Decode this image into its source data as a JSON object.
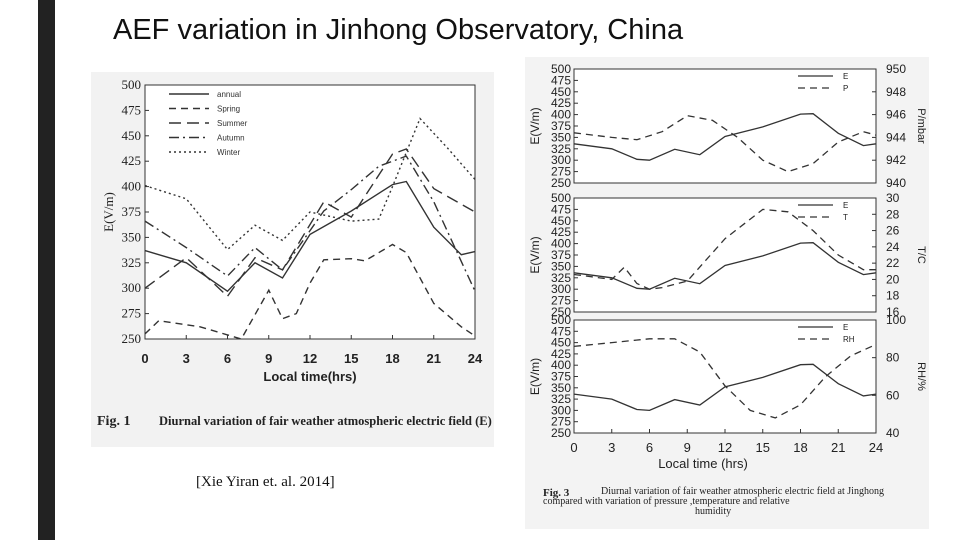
{
  "slide": {
    "title": "AEF variation in Jinhong Observatory, China",
    "citation": "[Xie Yiran et. al. 2014]"
  },
  "chart_data": [
    {
      "id": "fig1",
      "type": "line",
      "title": "",
      "caption_label": "Fig. 1",
      "caption_text": "Diurnal variation of fair weather atmospheric electric field (E)",
      "xlabel": "Local time(hrs)",
      "ylabel": "E(V/m)",
      "x_ticks": [
        "0",
        "3",
        "6",
        "9",
        "12",
        "15",
        "18",
        "21",
        "24"
      ],
      "y_ticks": [
        "250",
        "275",
        "300",
        "325",
        "350",
        "375",
        "400",
        "425",
        "450",
        "475",
        "500"
      ],
      "xlim": [
        0,
        24
      ],
      "ylim": [
        250,
        500
      ],
      "legend_position": "top-left",
      "series": [
        {
          "name": "annual",
          "dash": "solid",
          "x": [
            0,
            3,
            6,
            8,
            10,
            12,
            15,
            18,
            19,
            21,
            23,
            24
          ],
          "y": [
            337,
            325,
            297,
            325,
            310,
            353,
            376,
            402,
            405,
            360,
            333,
            336
          ]
        },
        {
          "name": "Spring",
          "dash": "dash",
          "x": [
            0,
            1,
            4,
            6,
            7,
            9,
            10,
            11,
            12,
            13,
            15,
            16,
            18,
            19,
            21,
            23,
            24
          ],
          "y": [
            255,
            268,
            262,
            254,
            250,
            298,
            270,
            275,
            305,
            328,
            329,
            327,
            343,
            335,
            285,
            262,
            253
          ]
        },
        {
          "name": "Summer",
          "dash": "longdash",
          "x": [
            0,
            3,
            6,
            8,
            10,
            13,
            15,
            18,
            19,
            21,
            24
          ],
          "y": [
            300,
            330,
            292,
            330,
            318,
            385,
            370,
            432,
            437,
            398,
            375
          ]
        },
        {
          "name": "Autumn",
          "dash": "dashdot",
          "x": [
            0,
            3,
            6,
            8,
            10,
            13,
            15,
            17,
            19,
            21,
            24
          ],
          "y": [
            366,
            340,
            312,
            340,
            318,
            376,
            397,
            420,
            430,
            385,
            297
          ]
        },
        {
          "name": "Winter",
          "dash": "dot",
          "x": [
            0,
            3,
            6,
            8,
            10,
            12,
            15,
            17,
            18,
            20,
            22,
            24
          ],
          "y": [
            401,
            388,
            338,
            362,
            347,
            375,
            366,
            368,
            400,
            467,
            438,
            407
          ]
        }
      ]
    },
    {
      "id": "fig3",
      "type": "line",
      "caption_label": "Fig. 3",
      "caption_text": "Diurnal variation of fair weather atmospheric electric field at Jinghong compared with  variation of pressure ,temperature and relative humidity",
      "xlabel": "Local time (hrs)",
      "x_ticks": [
        "0",
        "3",
        "6",
        "9",
        "12",
        "15",
        "18",
        "21",
        "24"
      ],
      "xlim": [
        0,
        24
      ],
      "panels": [
        {
          "ylabel_left": "E(V/m)",
          "ylabel_right": "P/mbar",
          "ylim_left": [
            250,
            500
          ],
          "ylim_right": [
            940,
            950
          ],
          "left_ticks": [
            "500",
            "475",
            "450",
            "425",
            "400",
            "375",
            "350",
            "325",
            "300",
            "275",
            "250"
          ],
          "right_ticks": [
            "950",
            "948",
            "946",
            "944",
            "942",
            "940"
          ],
          "legend_position": "top-right",
          "series": [
            {
              "name": "E",
              "axis": "left",
              "dash": "solid",
              "x": [
                0,
                3,
                5,
                6,
                8,
                10,
                12,
                15,
                18,
                19,
                21,
                23,
                24
              ],
              "y": [
                336,
                325,
                302,
                300,
                324,
                312,
                352,
                373,
                401,
                402,
                359,
                332,
                336
              ]
            },
            {
              "name": "P",
              "axis": "right",
              "dash": "dash",
              "x": [
                0,
                3,
                5,
                7,
                9,
                11,
                13,
                15,
                17,
                19,
                21,
                23,
                24
              ],
              "y": [
                944.4,
                944.0,
                943.8,
                944.5,
                945.9,
                945.5,
                944.0,
                942.0,
                941.0,
                941.7,
                943.6,
                944.5,
                944.2
              ]
            }
          ]
        },
        {
          "ylabel_left": "E(V/m)",
          "ylabel_right": "T/C",
          "ylim_left": [
            250,
            500
          ],
          "ylim_right": [
            16,
            30
          ],
          "left_ticks": [
            "500",
            "475",
            "450",
            "425",
            "400",
            "375",
            "350",
            "325",
            "300",
            "275",
            "250"
          ],
          "right_ticks": [
            "30",
            "28",
            "26",
            "24",
            "22",
            "20",
            "18",
            "16"
          ],
          "legend_position": "top-right",
          "series": [
            {
              "name": "E",
              "axis": "left",
              "dash": "solid",
              "x": [
                0,
                3,
                5,
                6,
                8,
                10,
                12,
                15,
                18,
                19,
                21,
                23,
                24
              ],
              "y": [
                336,
                325,
                302,
                300,
                324,
                312,
                352,
                373,
                401,
                402,
                359,
                332,
                336
              ]
            },
            {
              "name": "T",
              "axis": "right",
              "dash": "dash",
              "x": [
                0,
                3,
                4,
                5,
                6,
                7,
                9,
                12,
                15,
                17,
                19,
                21,
                23,
                24
              ],
              "y": [
                20.6,
                20.0,
                21.5,
                19.5,
                18.8,
                19.0,
                19.8,
                25.0,
                28.6,
                28.3,
                26.0,
                23.0,
                21.2,
                21.2
              ]
            }
          ]
        },
        {
          "ylabel_left": "E(V/m)",
          "ylabel_right": "RH/%",
          "ylim_left": [
            250,
            500
          ],
          "ylim_right": [
            40,
            100
          ],
          "left_ticks": [
            "500",
            "475",
            "450",
            "425",
            "400",
            "375",
            "350",
            "325",
            "300",
            "275",
            "250"
          ],
          "right_ticks": [
            "100",
            "80",
            "60",
            "40"
          ],
          "legend_position": "top-right",
          "series": [
            {
              "name": "E",
              "axis": "left",
              "dash": "solid",
              "x": [
                0,
                3,
                5,
                6,
                8,
                10,
                12,
                15,
                18,
                19,
                21,
                23,
                24
              ],
              "y": [
                336,
                325,
                302,
                300,
                324,
                312,
                352,
                373,
                401,
                402,
                359,
                332,
                336
              ]
            },
            {
              "name": "RH",
              "axis": "right",
              "dash": "dash",
              "x": [
                0,
                3,
                6,
                8,
                10,
                12,
                14,
                16,
                18,
                20,
                22,
                24
              ],
              "y": [
                86,
                88,
                90,
                90,
                83,
                65,
                52,
                48,
                55,
                70,
                81,
                87
              ]
            }
          ]
        }
      ]
    }
  ]
}
